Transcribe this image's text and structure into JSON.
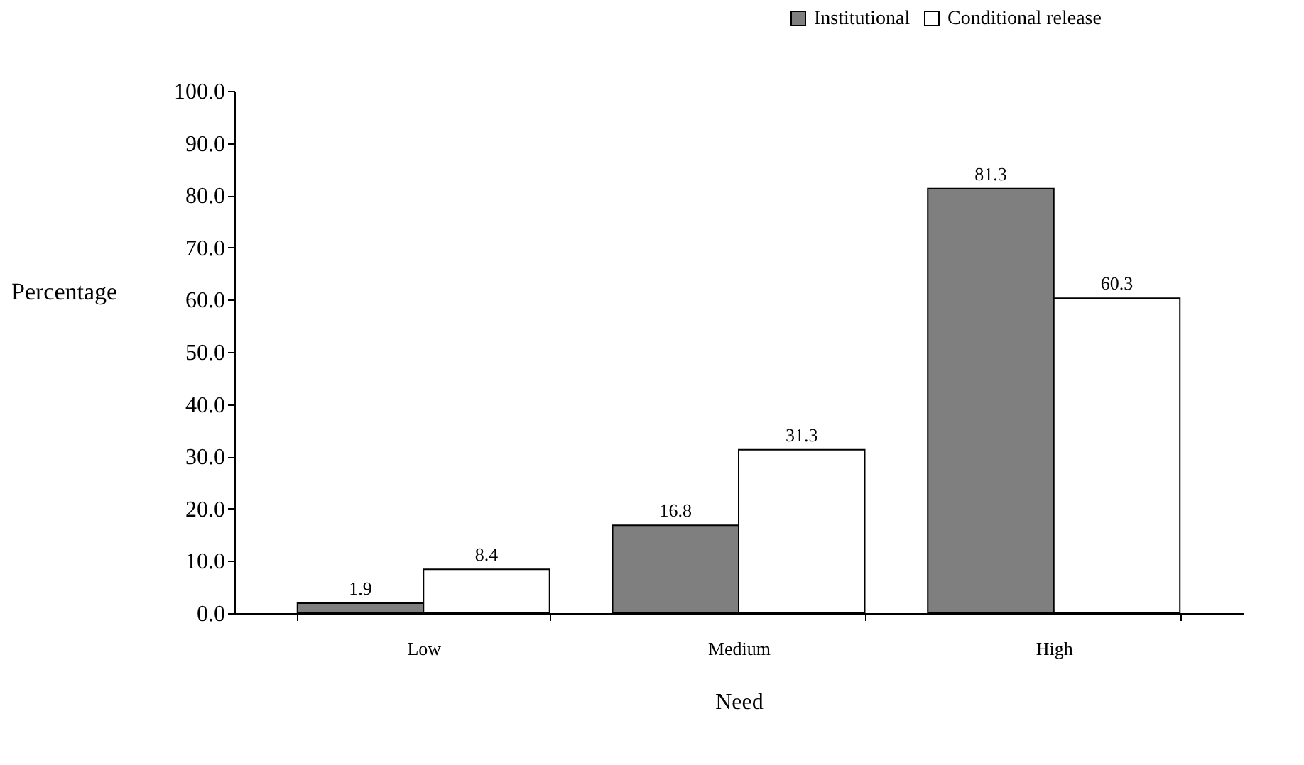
{
  "chart_data": {
    "type": "bar",
    "xlabel": "Need",
    "ylabel": "Percentage",
    "categories": [
      "Low",
      "Medium",
      "High"
    ],
    "series": [
      {
        "name": "Institutional",
        "color": "#7f7f7f",
        "values": [
          1.9,
          16.8,
          81.3
        ]
      },
      {
        "name": "Conditional release",
        "color": "#ffffff",
        "values": [
          8.4,
          31.3,
          60.3
        ]
      }
    ],
    "ylim": [
      0,
      100
    ],
    "yticks": [
      {
        "value": 0,
        "label": "0.0"
      },
      {
        "value": 10,
        "label": "10.0"
      },
      {
        "value": 20,
        "label": "20.0"
      },
      {
        "value": 30,
        "label": "30.0"
      },
      {
        "value": 40,
        "label": "40.0"
      },
      {
        "value": 50,
        "label": "50.0"
      },
      {
        "value": 60,
        "label": "60.0"
      },
      {
        "value": 70,
        "label": "70.0"
      },
      {
        "value": 80,
        "label": "80.0"
      },
      {
        "value": 90,
        "label": "90.0"
      },
      {
        "value": 100,
        "label": "100.0"
      }
    ],
    "data_labels": true,
    "legend": "top right",
    "grid": false
  }
}
